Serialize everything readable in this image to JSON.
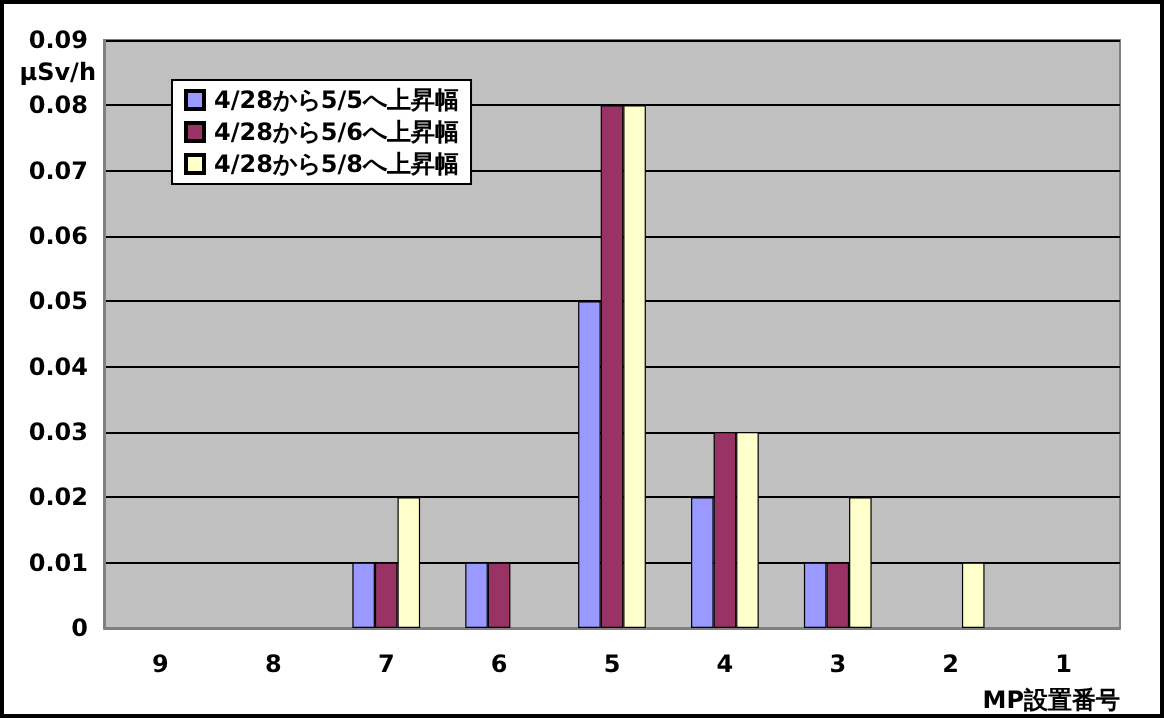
{
  "chart_data": {
    "type": "bar",
    "categories": [
      "9",
      "8",
      "7",
      "6",
      "5",
      "4",
      "3",
      "2",
      "1"
    ],
    "series": [
      {
        "name": "4/28から5/5へ上昇幅",
        "color": "#9999ff",
        "values": [
          0,
          0,
          0.01,
          0.01,
          0.05,
          0.02,
          0.01,
          0,
          0
        ]
      },
      {
        "name": "4/28から5/6へ上昇幅",
        "color": "#993366",
        "values": [
          0,
          0,
          0.01,
          0.01,
          0.08,
          0.03,
          0.01,
          0,
          0
        ]
      },
      {
        "name": "4/28から5/8へ上昇幅",
        "color": "#ffffcc",
        "values": [
          0,
          0,
          0.02,
          0,
          0.08,
          0.03,
          0.02,
          0.01,
          0
        ]
      }
    ],
    "ylabel": "μSv/h",
    "xlabel": "MP設置番号",
    "ylim": [
      0,
      0.09
    ],
    "yticks": [
      0,
      0.01,
      0.02,
      0.03,
      0.04,
      0.05,
      0.06,
      0.07,
      0.08,
      0.09
    ],
    "grid": "y",
    "legend": "top left"
  }
}
